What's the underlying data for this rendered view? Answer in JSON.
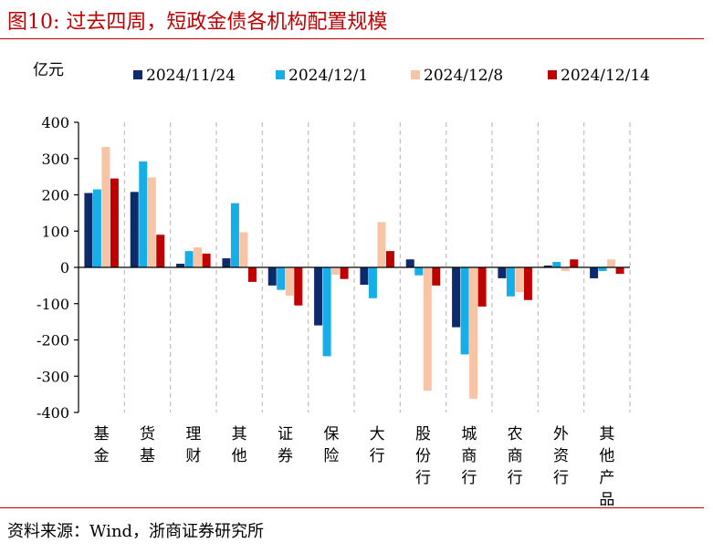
{
  "figure": {
    "title": "图10:   过去四周，短政金债各机构配置规模",
    "source": "资料来源：Wind，浙商证券研究所"
  },
  "colors": {
    "accent": "#c00000",
    "series": [
      "#0d2a6b",
      "#16aee8",
      "#f7c4a5",
      "#c00000"
    ],
    "dash": "#bfbfbf"
  },
  "chart_data": {
    "type": "bar",
    "unit_label": "亿元",
    "xlabel": "",
    "ylabel": "",
    "ylim": [
      -400,
      400
    ],
    "yticks": [
      400,
      300,
      200,
      100,
      0,
      -100,
      -200,
      -300,
      -400
    ],
    "legend_position": "top",
    "categories": [
      "基金",
      "货基",
      "理财",
      "其他",
      "证券",
      "保险",
      "大行",
      "股份行",
      "城商行",
      "农商行",
      "外资行",
      "其他产品"
    ],
    "series": [
      {
        "name": "2024/11/24",
        "values": [
          205,
          208,
          10,
          25,
          -50,
          -160,
          -48,
          22,
          -165,
          -30,
          5,
          -30
        ]
      },
      {
        "name": "2024/12/1",
        "values": [
          215,
          292,
          45,
          177,
          -62,
          -245,
          -85,
          -22,
          -240,
          -80,
          15,
          -10
        ]
      },
      {
        "name": "2024/12/8",
        "values": [
          332,
          248,
          55,
          97,
          -78,
          -20,
          125,
          -340,
          -362,
          -68,
          -10,
          22
        ]
      },
      {
        "name": "2024/12/14",
        "values": [
          245,
          90,
          38,
          -40,
          -105,
          -32,
          45,
          -50,
          -108,
          -90,
          22,
          -18
        ]
      }
    ]
  }
}
